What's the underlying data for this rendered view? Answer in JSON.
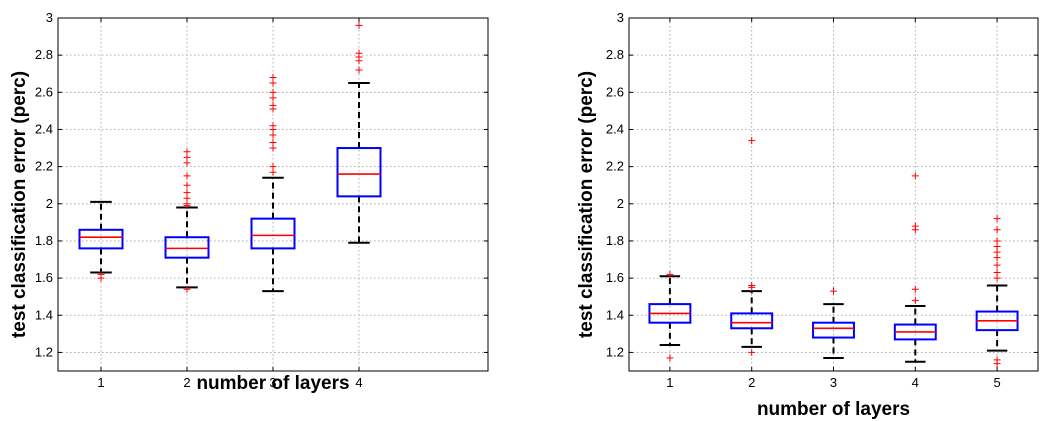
{
  "chart_data": [
    {
      "type": "box",
      "xlabel": "number of layers",
      "ylabel": "test classification error (perc)",
      "categories": [
        "1",
        "2",
        "3",
        "4"
      ],
      "xlim": [
        0.5,
        5.5
      ],
      "ylim": [
        1.1,
        3.0
      ],
      "yticks": [
        "1.2",
        "1.4",
        "1.6",
        "1.8",
        "2",
        "2.2",
        "2.4",
        "2.6",
        "2.8",
        "3"
      ],
      "grid": true,
      "colors": {
        "box": "#0000ff",
        "median": "#ff0000",
        "whisker": "#000000",
        "outlier": "#ff0000"
      },
      "boxes": [
        {
          "category": "1",
          "whisker_low": 1.63,
          "q1": 1.76,
          "median": 1.82,
          "q3": 1.86,
          "whisker_high": 2.01,
          "outliers": [
            1.6,
            1.62
          ]
        },
        {
          "category": "2",
          "whisker_low": 1.55,
          "q1": 1.71,
          "median": 1.76,
          "q3": 1.82,
          "whisker_high": 1.98,
          "outliers": [
            1.54,
            1.99,
            2.0,
            2.03,
            2.06,
            2.1,
            2.15,
            2.22,
            2.25,
            2.28
          ]
        },
        {
          "category": "3",
          "whisker_low": 1.53,
          "q1": 1.76,
          "median": 1.83,
          "q3": 1.92,
          "whisker_high": 2.14,
          "outliers": [
            2.17,
            2.2,
            2.3,
            2.33,
            2.37,
            2.4,
            2.42,
            2.51,
            2.53,
            2.57,
            2.6,
            2.65,
            2.68
          ]
        },
        {
          "category": "4",
          "whisker_low": 1.79,
          "q1": 2.04,
          "median": 2.16,
          "q3": 2.3,
          "whisker_high": 2.65,
          "outliers": [
            2.72,
            2.77,
            2.79,
            2.81,
            2.96
          ]
        }
      ]
    },
    {
      "type": "box",
      "xlabel": "number of layers",
      "ylabel": "test classification error (perc)",
      "categories": [
        "1",
        "2",
        "3",
        "4",
        "5"
      ],
      "xlim": [
        0.5,
        5.5
      ],
      "ylim": [
        1.1,
        3.0
      ],
      "yticks": [
        "1.2",
        "1.4",
        "1.6",
        "1.8",
        "2",
        "2.2",
        "2.4",
        "2.6",
        "2.8",
        "3"
      ],
      "grid": true,
      "colors": {
        "box": "#0000ff",
        "median": "#ff0000",
        "whisker": "#000000",
        "outlier": "#ff0000"
      },
      "boxes": [
        {
          "category": "1",
          "whisker_low": 1.24,
          "q1": 1.36,
          "median": 1.41,
          "q3": 1.46,
          "whisker_high": 1.61,
          "outliers": [
            1.17,
            1.62
          ]
        },
        {
          "category": "2",
          "whisker_low": 1.23,
          "q1": 1.33,
          "median": 1.36,
          "q3": 1.41,
          "whisker_high": 1.53,
          "outliers": [
            1.2,
            1.55,
            1.56,
            2.34
          ]
        },
        {
          "category": "3",
          "whisker_low": 1.17,
          "q1": 1.28,
          "median": 1.33,
          "q3": 1.36,
          "whisker_high": 1.46,
          "outliers": [
            1.53
          ]
        },
        {
          "category": "4",
          "whisker_low": 1.15,
          "q1": 1.27,
          "median": 1.31,
          "q3": 1.35,
          "whisker_high": 1.45,
          "outliers": [
            1.48,
            1.54,
            1.86,
            1.88,
            2.15
          ]
        },
        {
          "category": "5",
          "whisker_low": 1.21,
          "q1": 1.32,
          "median": 1.37,
          "q3": 1.42,
          "whisker_high": 1.56,
          "outliers": [
            1.14,
            1.16,
            1.6,
            1.63,
            1.67,
            1.71,
            1.74,
            1.77,
            1.8,
            1.86,
            1.92
          ]
        }
      ]
    }
  ]
}
